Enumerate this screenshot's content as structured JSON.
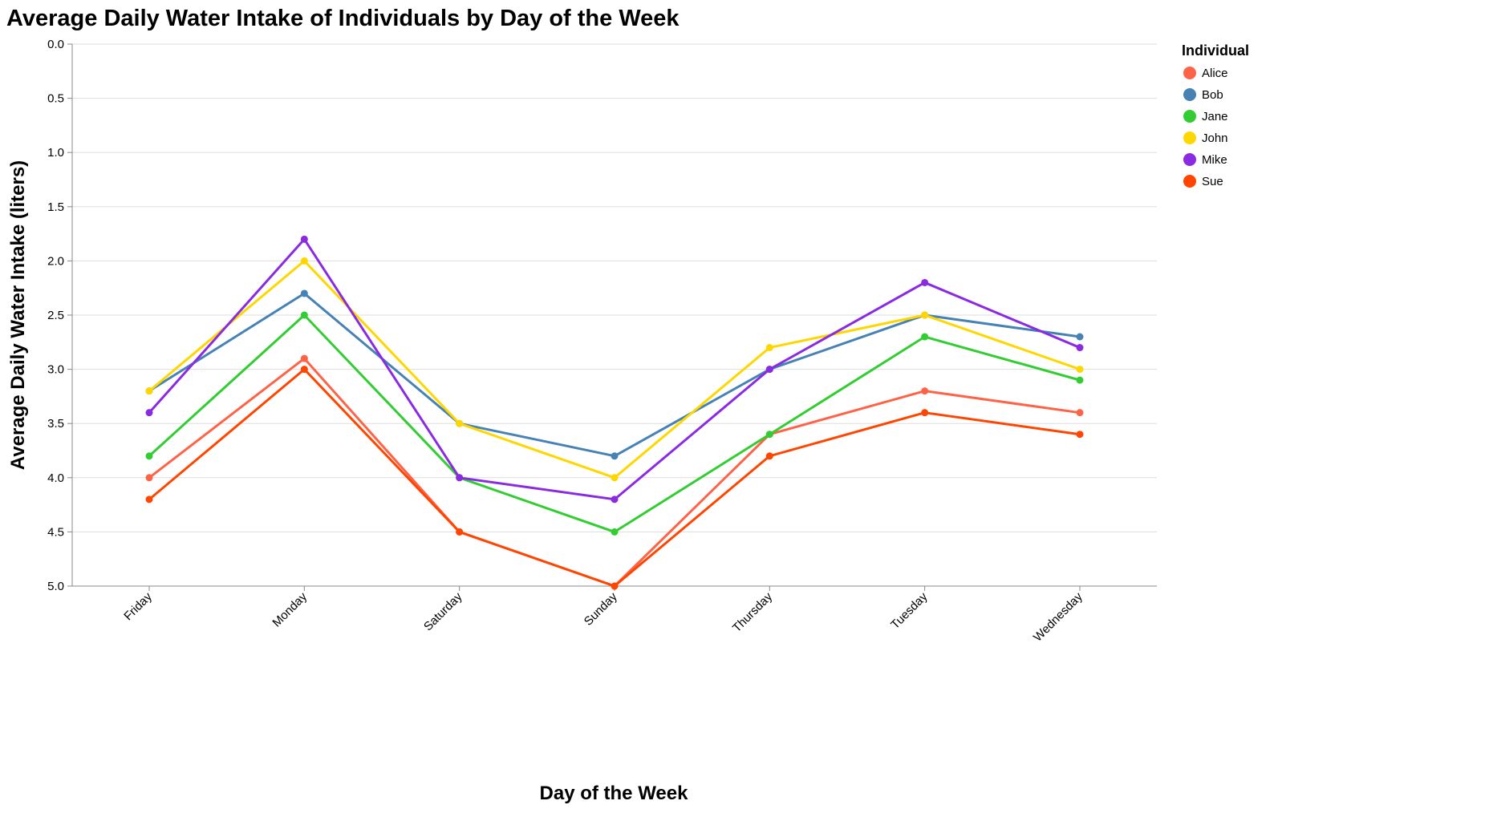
{
  "chart_data": {
    "type": "line",
    "title": "Average Daily Water Intake of Individuals by Day of the Week",
    "xlabel": "Day of the Week",
    "ylabel": "Average Daily Water Intake (liters)",
    "categories": [
      "Friday",
      "Monday",
      "Saturday",
      "Sunday",
      "Thursday",
      "Tuesday",
      "Wednesday"
    ],
    "ylim": [
      0,
      5
    ],
    "y_reversed": true,
    "y_ticks": [
      "0.0",
      "0.5",
      "1.0",
      "1.5",
      "2.0",
      "2.5",
      "3.0",
      "3.5",
      "4.0",
      "4.5",
      "5.0"
    ],
    "grid": "horizontal",
    "legend": {
      "title": "Individual",
      "placement": "right"
    },
    "series": [
      {
        "name": "Alice",
        "color": "#ff6347",
        "values": [
          4.0,
          2.9,
          4.5,
          5.0,
          3.6,
          3.2,
          3.4
        ]
      },
      {
        "name": "Bob",
        "color": "#4682b4",
        "values": [
          3.2,
          2.3,
          3.5,
          3.8,
          3.0,
          2.5,
          2.7
        ]
      },
      {
        "name": "Jane",
        "color": "#32cd32",
        "values": [
          3.8,
          2.5,
          4.0,
          4.5,
          3.6,
          2.7,
          3.1
        ]
      },
      {
        "name": "John",
        "color": "#ffd700",
        "values": [
          3.2,
          2.0,
          3.5,
          4.0,
          2.8,
          2.5,
          3.0
        ]
      },
      {
        "name": "Mike",
        "color": "#8a2be2",
        "values": [
          3.4,
          1.8,
          4.0,
          4.2,
          3.0,
          2.2,
          2.8
        ]
      },
      {
        "name": "Sue",
        "color": "#ff4500",
        "values": [
          4.2,
          3.0,
          4.5,
          5.0,
          3.8,
          3.4,
          3.6
        ]
      }
    ]
  }
}
